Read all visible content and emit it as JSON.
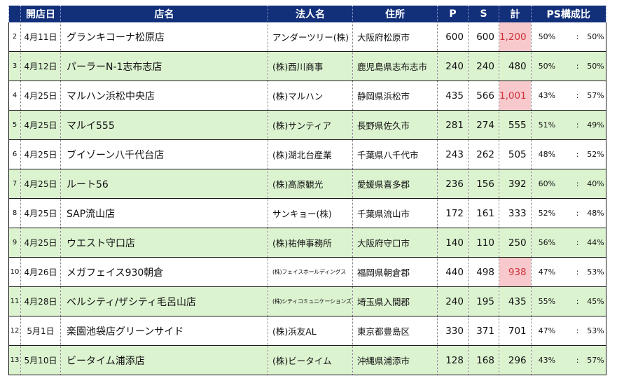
{
  "headers": {
    "no": "",
    "date": "開店日",
    "name": "店名",
    "corp": "法人名",
    "addr": "住所",
    "p": "P",
    "s": "S",
    "total": "計",
    "ratio": "PS構成比"
  },
  "ratio_sep": ":",
  "colors": {
    "header_bg": "#12307a",
    "row_alt_bg": "#dcf3d0",
    "highlight_bg": "#f8c9cc",
    "highlight_text": "#d0303a"
  },
  "rows": [
    {
      "no": "2",
      "date": "4月11日",
      "name": "グランキコーナ松原店",
      "corp": "アンダーツリー(株)",
      "addr": "大阪府松原市",
      "p": "600",
      "s": "600",
      "total": "1,200",
      "p_ratio": "50%",
      "s_ratio": "50%",
      "highlight": true
    },
    {
      "no": "3",
      "date": "4月12日",
      "name": "パーラーN-1志布志店",
      "corp": "(株)西川商事",
      "addr": "鹿児島県志布志市",
      "p": "240",
      "s": "240",
      "total": "480",
      "p_ratio": "50%",
      "s_ratio": "50%",
      "highlight": false
    },
    {
      "no": "4",
      "date": "4月25日",
      "name": "マルハン浜松中央店",
      "corp": "(株)マルハン",
      "addr": "静岡県浜松市",
      "p": "435",
      "s": "566",
      "total": "1,001",
      "p_ratio": "43%",
      "s_ratio": "57%",
      "highlight": true
    },
    {
      "no": "5",
      "date": "4月25日",
      "name": "マルイ555",
      "corp": "(株)サンティア",
      "addr": "長野県佐久市",
      "p": "281",
      "s": "274",
      "total": "555",
      "p_ratio": "51%",
      "s_ratio": "49%",
      "highlight": false
    },
    {
      "no": "6",
      "date": "4月25日",
      "name": "ブイゾーン八千代台店",
      "corp": "(株)湖北台産業",
      "addr": "千葉県八千代市",
      "p": "243",
      "s": "262",
      "total": "505",
      "p_ratio": "48%",
      "s_ratio": "52%",
      "highlight": false
    },
    {
      "no": "7",
      "date": "4月25日",
      "name": "ルート56",
      "corp": "(株)高原観光",
      "addr": "愛媛県喜多郡",
      "p": "236",
      "s": "156",
      "total": "392",
      "p_ratio": "60%",
      "s_ratio": "40%",
      "highlight": false
    },
    {
      "no": "8",
      "date": "4月25日",
      "name": "SAP流山店",
      "corp": "サンキョー(株)",
      "addr": "千葉県流山市",
      "p": "172",
      "s": "161",
      "total": "333",
      "p_ratio": "52%",
      "s_ratio": "48%",
      "highlight": false
    },
    {
      "no": "9",
      "date": "4月25日",
      "name": "ウエスト守口店",
      "corp": "(株)祐伸事務所",
      "addr": "大阪府守口市",
      "p": "140",
      "s": "110",
      "total": "250",
      "p_ratio": "56%",
      "s_ratio": "44%",
      "highlight": false
    },
    {
      "no": "10",
      "date": "4月26日",
      "name": "メガフェイス930朝倉",
      "corp": "(株)フェイスホールディングス",
      "addr": "福岡県朝倉郡",
      "p": "440",
      "s": "498",
      "total": "938",
      "p_ratio": "47%",
      "s_ratio": "53%",
      "highlight": true,
      "corp_small": true
    },
    {
      "no": "11",
      "date": "4月28日",
      "name": "ベルシティ/ザシティ毛呂山店",
      "corp": "(株)シティコミュニケーションズ",
      "addr": "埼玉県入間郡",
      "p": "240",
      "s": "195",
      "total": "435",
      "p_ratio": "55%",
      "s_ratio": "45%",
      "highlight": false,
      "corp_small": true
    },
    {
      "no": "12",
      "date": "5月1日",
      "name": "楽園池袋店グリーンサイド",
      "corp": "(株)浜友AL",
      "addr": "東京都豊島区",
      "p": "330",
      "s": "371",
      "total": "701",
      "p_ratio": "47%",
      "s_ratio": "53%",
      "highlight": false
    },
    {
      "no": "13",
      "date": "5月10日",
      "name": "ビータイム浦添店",
      "corp": "(株)ビータイム",
      "addr": "沖縄県浦添市",
      "p": "128",
      "s": "168",
      "total": "296",
      "p_ratio": "43%",
      "s_ratio": "57%",
      "highlight": false
    }
  ]
}
